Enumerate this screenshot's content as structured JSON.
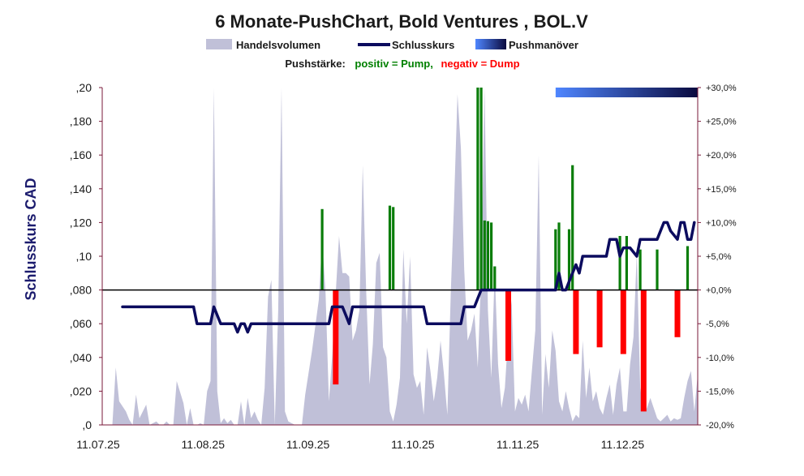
{
  "chart_data": {
    "type": "line",
    "title": "6 Monate-PushChart, Bold Ventures , BOL.V",
    "subtitle": {
      "prefix": "Pushstärke:",
      "positive": "positiv = Pump,",
      "negative": "negativ = Dump"
    },
    "ylabel": "Schlusskurs CAD",
    "legend": [
      {
        "name": "Handelsvolumen",
        "color": "#c0c0d8",
        "kind": "area"
      },
      {
        "name": "Schlusskurs",
        "color": "#0b0b5e",
        "kind": "line"
      },
      {
        "name": "Pushmanöver",
        "color": "#1a1a5e",
        "kind": "gradient"
      }
    ],
    "colors": {
      "volume": "#c0c0d8",
      "price": "#0b0b5e",
      "pump": "#0a7d0a",
      "dump": "#ff0000",
      "gradient_start": "#4f86ff",
      "gradient_end": "#0a0a3e",
      "pos_text": "#008000",
      "neg_text": "#ff0000"
    },
    "x_ticks": [
      "11.07.25",
      "11.08.25",
      "11.09.25",
      "11.10.25",
      "11.11.25",
      "11.12.25"
    ],
    "y_left": {
      "ylim": [
        0,
        0.2
      ],
      "tick_values": [
        0,
        0.02,
        0.04,
        0.06,
        0.08,
        0.1,
        0.12,
        0.14,
        0.16,
        0.18,
        0.2
      ],
      "tick_labels": [
        ",0",
        ",020",
        ",040",
        ",060",
        ",080",
        ",10",
        ",120",
        ",140",
        ",160",
        ",180",
        ",20"
      ]
    },
    "y_right": {
      "ylim": [
        -20,
        30
      ],
      "tick_values": [
        30,
        25,
        20,
        15,
        10,
        5,
        0,
        -5,
        -10,
        -15,
        -20
      ],
      "tick_labels": [
        "+30,0%",
        "+25,0%",
        "+20,0%",
        "+15,0%",
        "+10,0%",
        "+5,0%",
        "+0,0%",
        "-5,0%",
        "-10,0%",
        "-15,0%",
        "-20,0%"
      ]
    },
    "x_range_days": [
      0,
      176
    ],
    "volume_relative": [
      [
        0,
        0
      ],
      [
        3,
        0
      ],
      [
        4,
        0.17
      ],
      [
        5,
        0.07
      ],
      [
        7,
        0.04
      ],
      [
        8,
        0.015
      ],
      [
        9,
        0
      ],
      [
        10,
        0.09
      ],
      [
        11,
        0.02
      ],
      [
        13,
        0.06
      ],
      [
        14,
        0
      ],
      [
        16,
        0.01
      ],
      [
        17,
        0
      ],
      [
        18,
        0
      ],
      [
        19,
        0.01
      ],
      [
        20,
        0
      ],
      [
        21,
        0
      ],
      [
        22,
        0.13
      ],
      [
        24,
        0.065
      ],
      [
        25,
        0
      ],
      [
        26,
        0.05
      ],
      [
        27,
        0
      ],
      [
        28,
        0
      ],
      [
        29,
        0.005
      ],
      [
        30,
        0
      ],
      [
        31,
        0.1
      ],
      [
        32,
        0.13
      ],
      [
        33,
        1
      ],
      [
        34,
        0.1
      ],
      [
        35,
        0.005
      ],
      [
        36,
        0.02
      ],
      [
        37,
        0.005
      ],
      [
        38,
        0.015
      ],
      [
        39,
        0
      ],
      [
        40,
        0
      ],
      [
        41,
        0.07
      ],
      [
        42,
        0
      ],
      [
        43,
        0.08
      ],
      [
        44,
        0.02
      ],
      [
        45,
        0.04
      ],
      [
        46,
        0.015
      ],
      [
        47,
        0
      ],
      [
        48,
        0.11
      ],
      [
        49,
        0.38
      ],
      [
        50,
        0.43
      ],
      [
        51,
        0
      ],
      [
        52,
        0.34
      ],
      [
        53,
        1
      ],
      [
        54,
        0.04
      ],
      [
        55,
        0.01
      ],
      [
        56,
        0.005
      ],
      [
        57,
        0
      ],
      [
        58,
        0
      ],
      [
        59,
        0
      ],
      [
        60,
        0.09
      ],
      [
        62,
        0.22
      ],
      [
        64,
        0.37
      ],
      [
        65,
        0.55
      ],
      [
        66,
        0.39
      ],
      [
        67,
        0.07
      ],
      [
        68,
        0.21
      ],
      [
        69,
        0.39
      ],
      [
        70,
        0.56
      ],
      [
        71,
        0.45
      ],
      [
        72,
        0.45
      ],
      [
        73,
        0.44
      ],
      [
        74,
        0.25
      ],
      [
        75,
        0.28
      ],
      [
        76,
        0.34
      ],
      [
        77,
        0.77
      ],
      [
        78,
        0.4
      ],
      [
        79,
        0.12
      ],
      [
        80,
        0.24
      ],
      [
        81,
        0.48
      ],
      [
        82,
        0.51
      ],
      [
        83,
        0.23
      ],
      [
        84,
        0.2
      ],
      [
        85,
        0.04
      ],
      [
        86,
        0.01
      ],
      [
        87,
        0.06
      ],
      [
        88,
        0.14
      ],
      [
        89,
        0.52
      ],
      [
        90,
        0.3
      ],
      [
        91,
        0.5
      ],
      [
        92,
        0.15
      ],
      [
        93,
        0.11
      ],
      [
        94,
        0.13
      ],
      [
        95,
        0.03
      ],
      [
        96,
        0.23
      ],
      [
        97,
        0.16
      ],
      [
        98,
        0.07
      ],
      [
        99,
        0.14
      ],
      [
        100,
        0.25
      ],
      [
        101,
        0.15
      ],
      [
        102,
        0.03
      ],
      [
        103,
        0.39
      ],
      [
        104,
        0.66
      ],
      [
        105,
        0.98
      ],
      [
        106,
        0.82
      ],
      [
        107,
        0.46
      ],
      [
        108,
        0.25
      ],
      [
        109,
        0.28
      ],
      [
        110,
        0.33
      ],
      [
        111,
        0.17
      ],
      [
        112,
        0.45
      ],
      [
        113,
        1
      ],
      [
        114,
        0.34
      ],
      [
        115,
        0.14
      ],
      [
        116,
        0.46
      ],
      [
        117,
        0.18
      ],
      [
        118,
        0.05
      ],
      [
        119,
        0.11
      ],
      [
        120,
        0.27
      ],
      [
        121,
        0.37
      ],
      [
        122,
        0.04
      ],
      [
        123,
        0.08
      ],
      [
        124,
        0.06
      ],
      [
        125,
        0.09
      ],
      [
        126,
        0.04
      ],
      [
        127,
        0.16
      ],
      [
        128,
        0.28
      ],
      [
        129,
        0.8
      ],
      [
        130,
        0.03
      ],
      [
        131,
        0.21
      ],
      [
        132,
        0.11
      ],
      [
        133,
        0.28
      ],
      [
        134,
        0.22
      ],
      [
        135,
        0.07
      ],
      [
        136,
        0.04
      ],
      [
        137,
        0.1
      ],
      [
        138,
        0.05
      ],
      [
        139,
        0.01
      ],
      [
        140,
        0.03
      ],
      [
        141,
        0.02
      ],
      [
        142,
        0.25
      ],
      [
        143,
        0.08
      ],
      [
        144,
        0.17
      ],
      [
        145,
        0.07
      ],
      [
        146,
        0.1
      ],
      [
        147,
        0.05
      ],
      [
        148,
        0.03
      ],
      [
        149,
        0.08
      ],
      [
        150,
        0.12
      ],
      [
        151,
        0.03
      ],
      [
        152,
        0.12
      ],
      [
        153,
        0.17
      ],
      [
        154,
        0.04
      ],
      [
        155,
        0.04
      ],
      [
        156,
        0.18
      ],
      [
        157,
        0.26
      ],
      [
        158,
        0.51
      ],
      [
        159,
        0.11
      ],
      [
        160,
        0.04
      ],
      [
        161,
        0.05
      ],
      [
        162,
        0.08
      ],
      [
        163,
        0.05
      ],
      [
        164,
        0.02
      ],
      [
        165,
        0.01
      ],
      [
        166,
        0.02
      ],
      [
        167,
        0.03
      ],
      [
        168,
        0.01
      ],
      [
        169,
        0.02
      ],
      [
        170,
        0.015
      ],
      [
        171,
        0.02
      ],
      [
        172,
        0.08
      ],
      [
        173,
        0.13
      ],
      [
        174,
        0.16
      ],
      [
        175,
        0.04
      ],
      [
        176,
        0.15
      ]
    ],
    "price": [
      [
        6,
        0.07
      ],
      [
        27,
        0.07
      ],
      [
        28,
        0.06
      ],
      [
        32,
        0.06
      ],
      [
        33,
        0.07
      ],
      [
        34,
        0.065
      ],
      [
        35,
        0.06
      ],
      [
        39,
        0.06
      ],
      [
        40,
        0.055
      ],
      [
        41,
        0.06
      ],
      [
        42,
        0.06
      ],
      [
        43,
        0.055
      ],
      [
        44,
        0.06
      ],
      [
        53,
        0.06
      ],
      [
        54,
        0.06
      ],
      [
        67,
        0.06
      ],
      [
        68,
        0.07
      ],
      [
        71,
        0.07
      ],
      [
        72,
        0.065
      ],
      [
        73,
        0.06
      ],
      [
        74,
        0.07
      ],
      [
        95,
        0.07
      ],
      [
        96,
        0.06
      ],
      [
        106,
        0.06
      ],
      [
        107,
        0.07
      ],
      [
        110,
        0.07
      ],
      [
        111,
        0.075
      ],
      [
        112,
        0.08
      ],
      [
        134,
        0.08
      ],
      [
        135,
        0.09
      ],
      [
        136,
        0.08
      ],
      [
        137,
        0.08
      ],
      [
        138,
        0.085
      ],
      [
        140,
        0.095
      ],
      [
        141,
        0.09
      ],
      [
        142,
        0.1
      ],
      [
        149,
        0.1
      ],
      [
        150,
        0.11
      ],
      [
        151,
        0.11
      ],
      [
        152,
        0.11
      ],
      [
        153,
        0.1
      ],
      [
        154,
        0.105
      ],
      [
        156,
        0.105
      ],
      [
        158,
        0.1
      ],
      [
        159,
        0.11
      ],
      [
        164,
        0.11
      ],
      [
        166,
        0.12
      ],
      [
        167,
        0.12
      ],
      [
        168,
        0.115
      ],
      [
        170,
        0.11
      ],
      [
        171,
        0.12
      ],
      [
        172,
        0.12
      ],
      [
        173,
        0.11
      ],
      [
        174,
        0.11
      ],
      [
        175,
        0.12
      ]
    ],
    "push": [
      [
        65,
        12
      ],
      [
        69,
        -14
      ],
      [
        85,
        12.5
      ],
      [
        86,
        12.3
      ],
      [
        111,
        31
      ],
      [
        112,
        31
      ],
      [
        113,
        10.3
      ],
      [
        114,
        10.2
      ],
      [
        115,
        10
      ],
      [
        116,
        3.5
      ],
      [
        120,
        -10.5
      ],
      [
        134,
        9
      ],
      [
        135,
        10
      ],
      [
        138,
        9
      ],
      [
        139,
        18.5
      ],
      [
        140,
        -9.5
      ],
      [
        147,
        -8.5
      ],
      [
        153,
        8
      ],
      [
        154,
        -9.5
      ],
      [
        155,
        8
      ],
      [
        159,
        6
      ],
      [
        160,
        -18
      ],
      [
        164,
        6
      ],
      [
        170,
        -7
      ],
      [
        173,
        6.5
      ]
    ],
    "pushmanoever_range_days": [
      134,
      180
    ]
  }
}
